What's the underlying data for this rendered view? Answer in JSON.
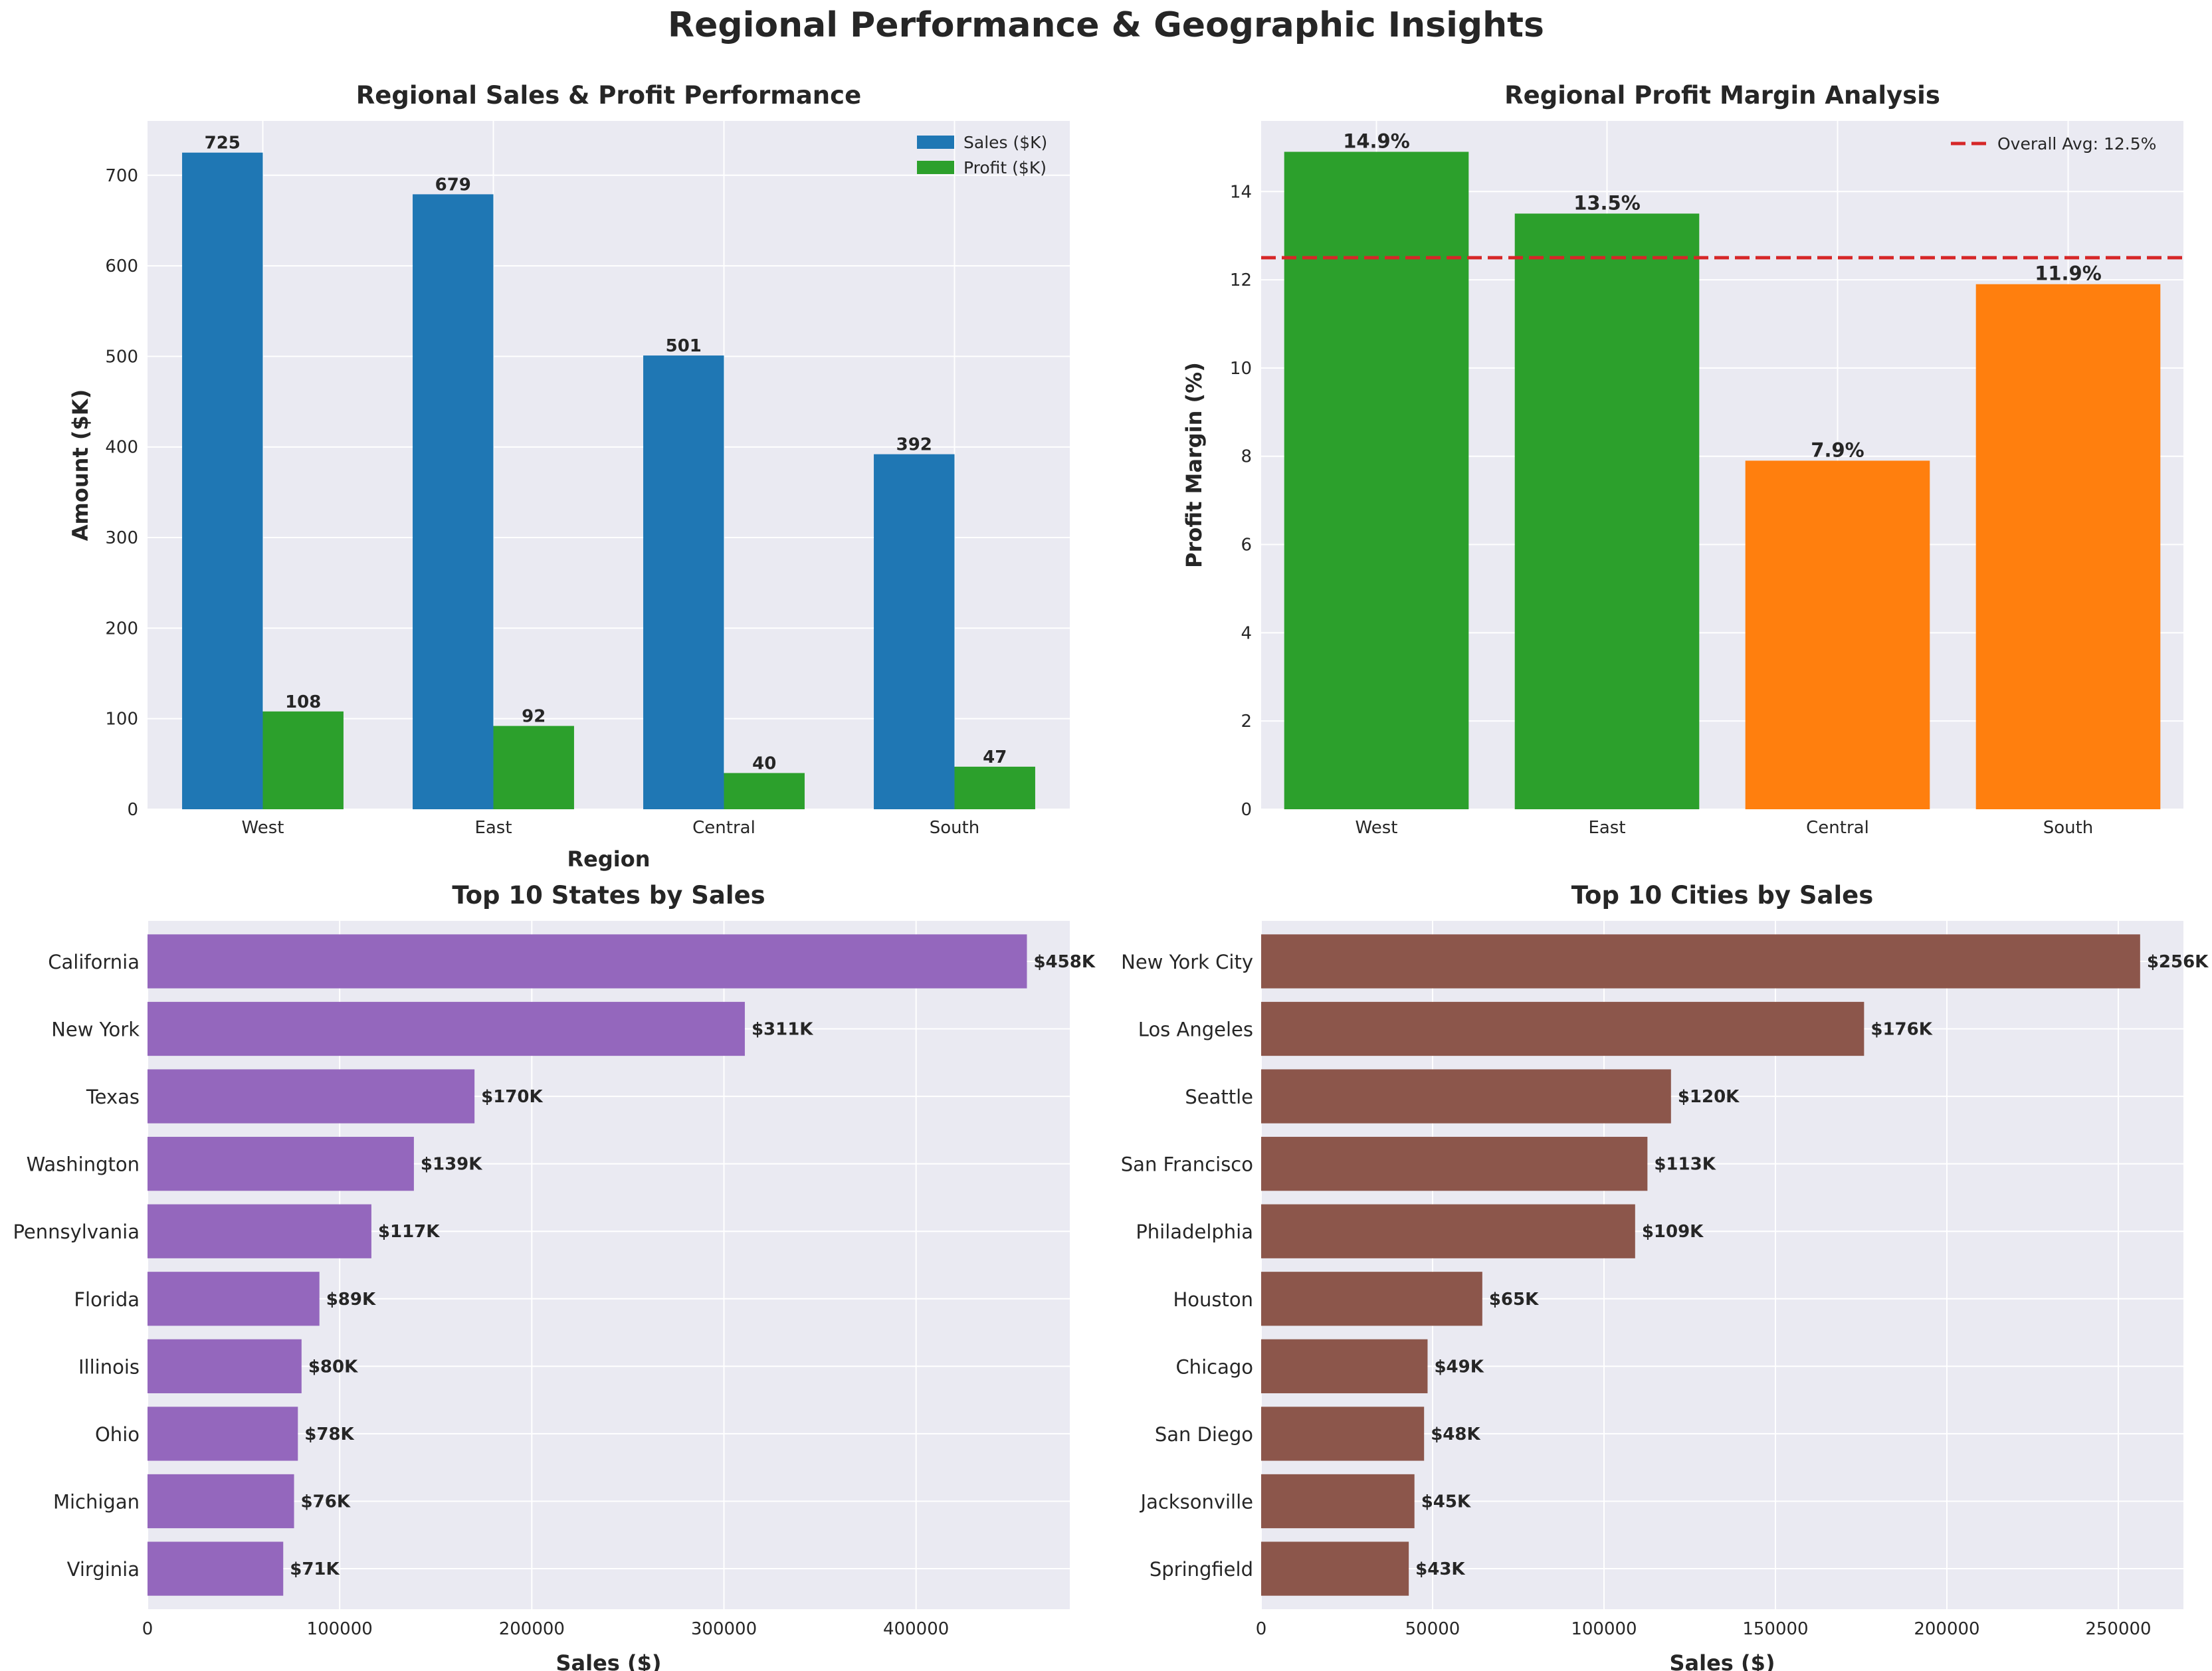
{
  "suptitle": "Regional Performance & Geographic Insights",
  "colors": {
    "sales": "#1f77b4",
    "profit": "#2ca02c",
    "margin_high": "#2ca02c",
    "margin_low": "#ff7f0e",
    "states": "#9467bd",
    "cities": "#8c564b",
    "avg_line": "#d62728",
    "panel_bg": "#eaeaf2",
    "grid": "#ffffff"
  },
  "chart_data": [
    {
      "type": "bar",
      "title": "Regional Sales & Profit Performance",
      "xlabel": "Region",
      "ylabel": "Amount ($K)",
      "categories": [
        "West",
        "East",
        "Central",
        "South"
      ],
      "series": [
        {
          "name": "Sales ($K)",
          "values": [
            725,
            679,
            501,
            392
          ],
          "labels": [
            "725",
            "679",
            "501",
            "392"
          ]
        },
        {
          "name": "Profit ($K)",
          "values": [
            108,
            92,
            40,
            47
          ],
          "labels": [
            "108",
            "92",
            "40",
            "47"
          ]
        }
      ],
      "ylim": [
        0,
        760
      ],
      "yticks": [
        0,
        100,
        200,
        300,
        400,
        500,
        600,
        700
      ],
      "legend": "top-right",
      "grid": true
    },
    {
      "type": "bar",
      "title": "Regional Profit Margin Analysis",
      "xlabel": "",
      "ylabel": "Profit Margin (%)",
      "categories": [
        "West",
        "East",
        "Central",
        "South"
      ],
      "values": [
        14.9,
        13.5,
        7.9,
        11.9
      ],
      "labels": [
        "14.9%",
        "13.5%",
        "7.9%",
        "11.9%"
      ],
      "above_average": [
        true,
        true,
        false,
        false
      ],
      "reference_line": {
        "value": 12.5,
        "label": "Overall Avg: 12.5%"
      },
      "ylim": [
        0,
        15.6
      ],
      "yticks": [
        0,
        2,
        4,
        6,
        8,
        10,
        12,
        14
      ],
      "legend": "top-right",
      "grid": true
    },
    {
      "type": "bar",
      "orientation": "horizontal",
      "title": "Top 10 States by Sales",
      "xlabel": "Sales ($)",
      "ylabel": "",
      "categories": [
        "California",
        "New York",
        "Texas",
        "Washington",
        "Pennsylvania",
        "Florida",
        "Illinois",
        "Ohio",
        "Michigan",
        "Virginia"
      ],
      "values": [
        457688,
        310876,
        170188,
        138641,
        116512,
        89474,
        80166,
        78258,
        76270,
        70637
      ],
      "labels": [
        "$458K",
        "$311K",
        "$170K",
        "$139K",
        "$117K",
        "$89K",
        "$80K",
        "$78K",
        "$76K",
        "$71K"
      ],
      "xlim": [
        0,
        480000
      ],
      "xticks": [
        0,
        100000,
        200000,
        300000,
        400000
      ],
      "xticklabels": [
        "0",
        "100000",
        "200000",
        "300000",
        "400000"
      ],
      "grid": true
    },
    {
      "type": "bar",
      "orientation": "horizontal",
      "title": "Top 10 Cities by Sales",
      "xlabel": "Sales ($)",
      "ylabel": "",
      "categories": [
        "New York City",
        "Los Angeles",
        "Seattle",
        "San Francisco",
        "Philadelphia",
        "Houston",
        "Chicago",
        "San Diego",
        "Jacksonville",
        "Springfield"
      ],
      "values": [
        256368,
        175851,
        119541,
        112669,
        109077,
        64505,
        48540,
        47521,
        44713,
        43054
      ],
      "labels": [
        "$256K",
        "$176K",
        "$120K",
        "$113K",
        "$109K",
        "$65K",
        "$49K",
        "$48K",
        "$45K",
        "$43K"
      ],
      "xlim": [
        0,
        269000
      ],
      "xticks": [
        0,
        50000,
        100000,
        150000,
        200000,
        250000
      ],
      "xticklabels": [
        "0",
        "50000",
        "100000",
        "150000",
        "200000",
        "250000"
      ],
      "grid": true
    }
  ]
}
